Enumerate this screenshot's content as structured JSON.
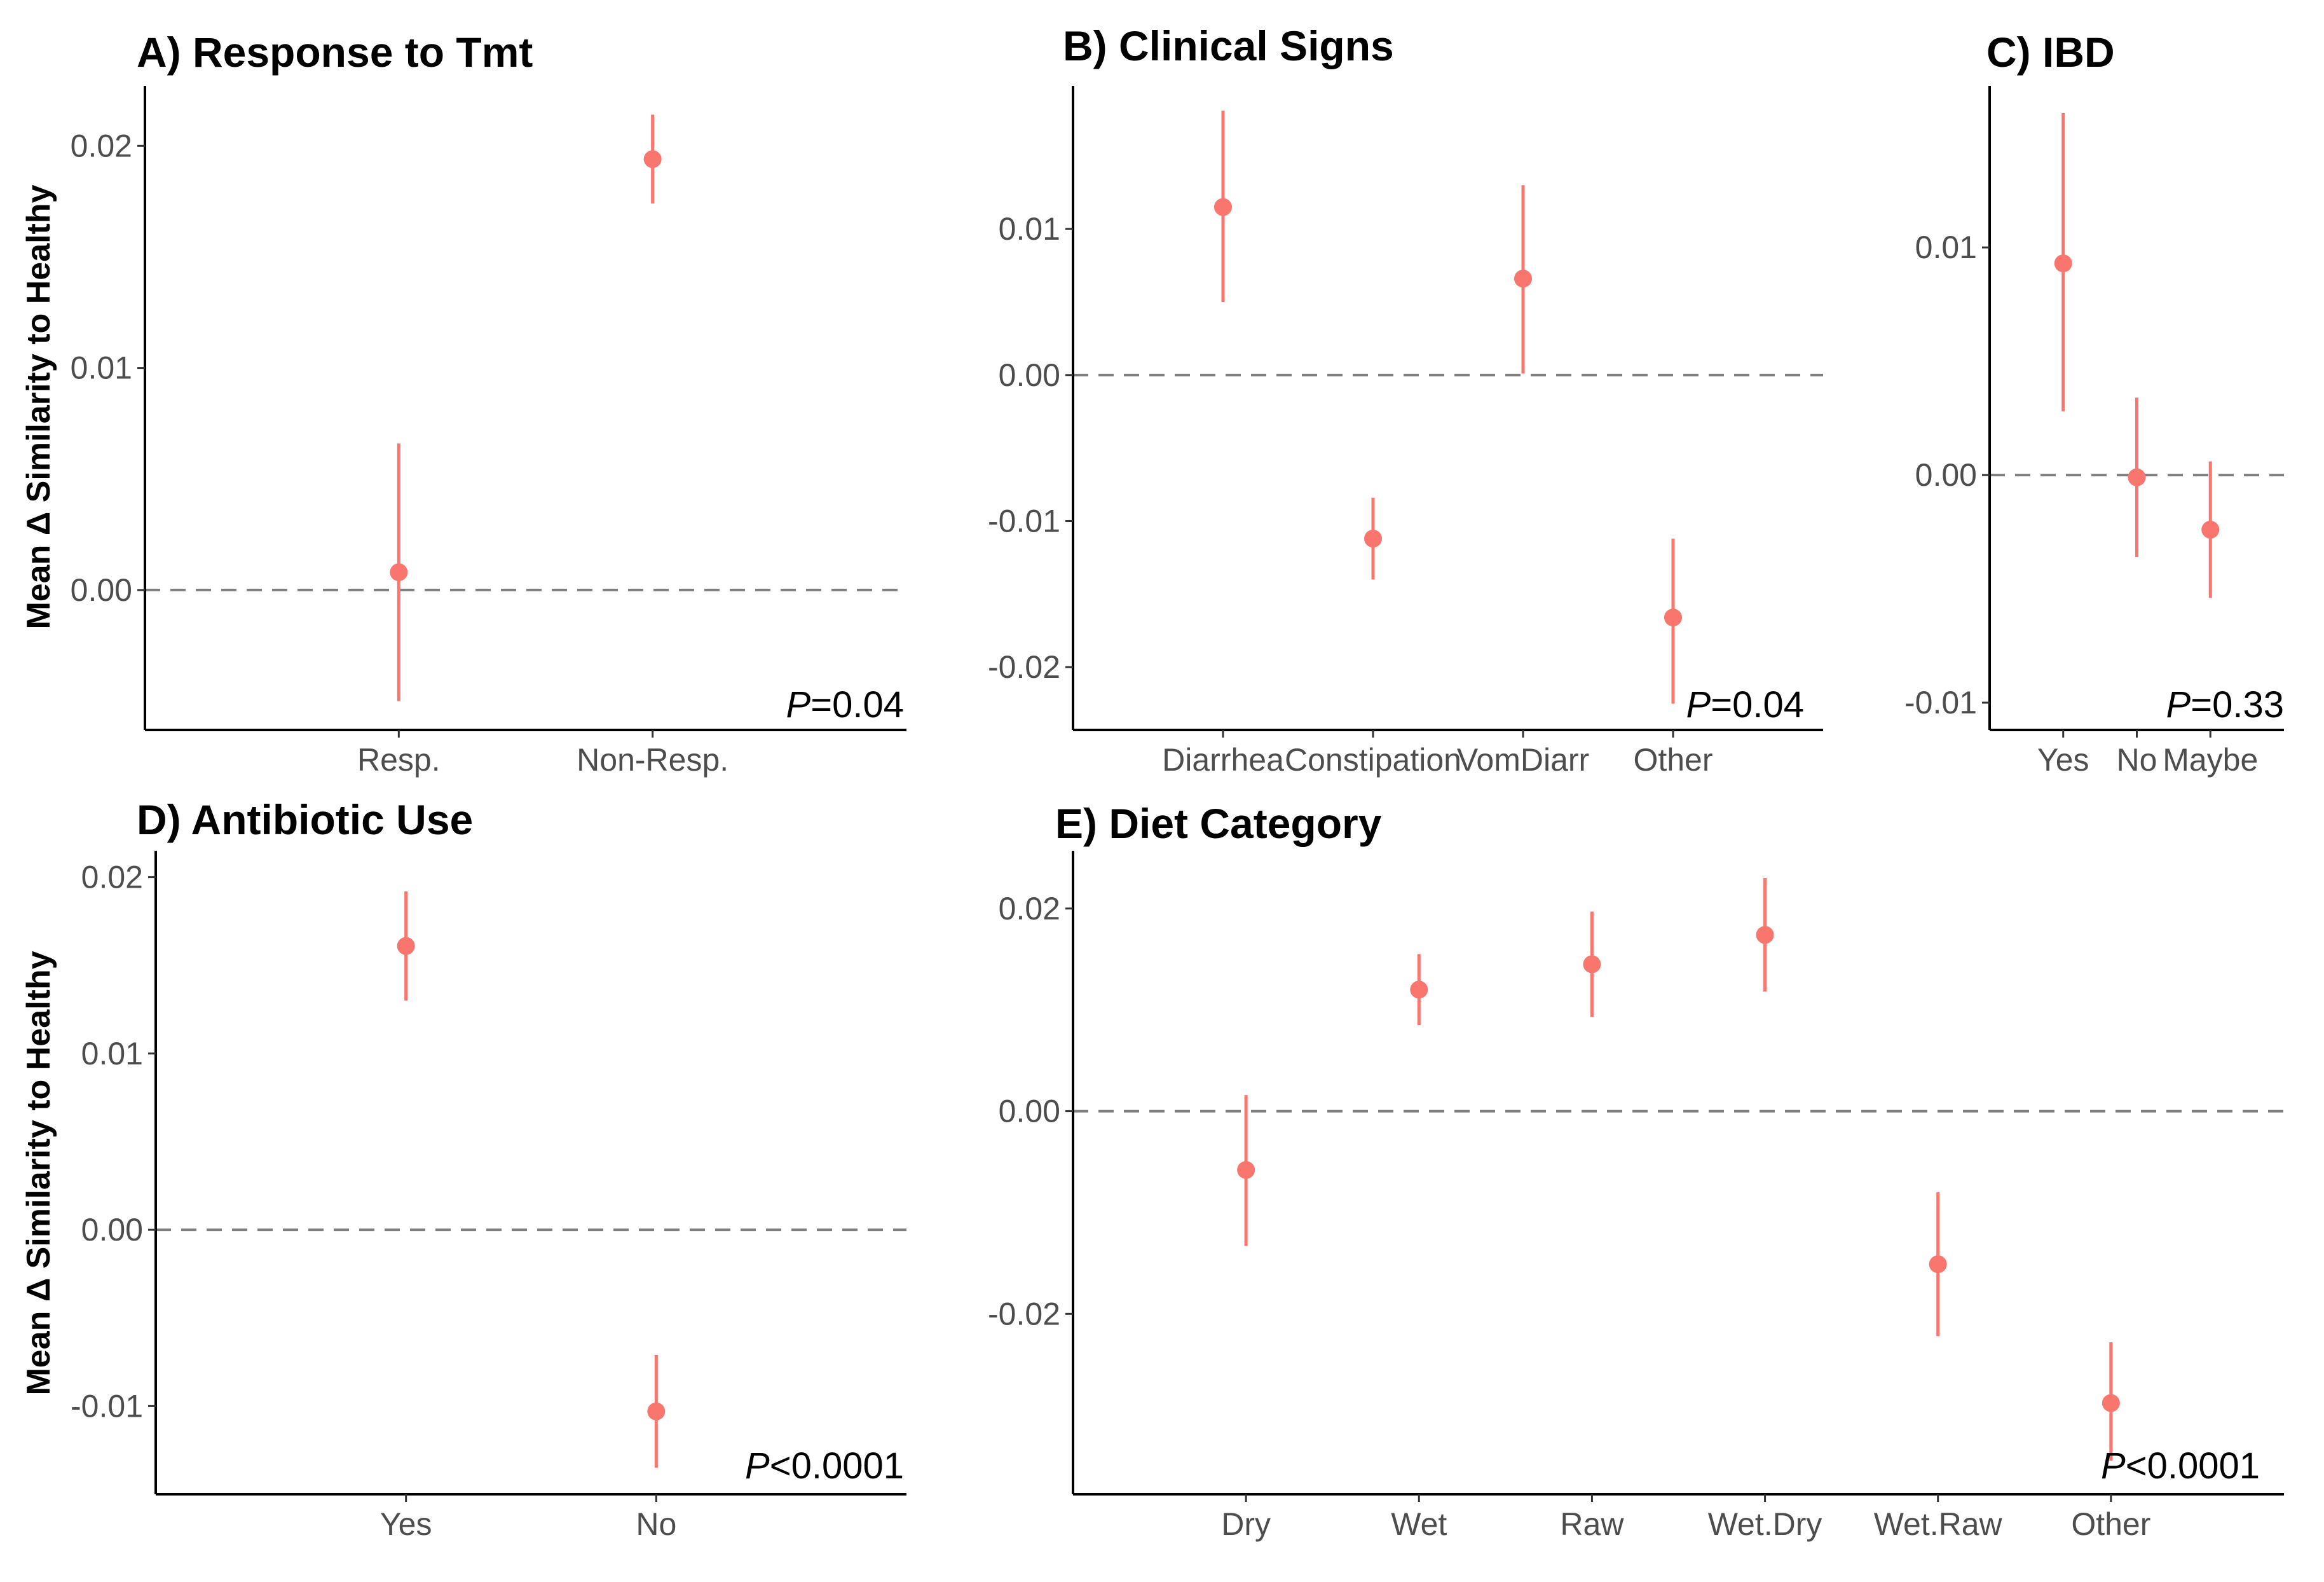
{
  "figure": {
    "accent_color": "#F8766D",
    "ref_line_color": "#7f7f7f",
    "y_axis_label": "Mean Δ Similarity to Healthy"
  },
  "chart_data": [
    {
      "id": "A",
      "type": "scatter",
      "title": "A) Response to Tmt",
      "ylabel": "Mean Δ Similarity to Healthy",
      "ylim": [
        -0.0063,
        0.0227
      ],
      "yticks": [
        0.0,
        0.01,
        0.02
      ],
      "ytick_labels": [
        "0.00",
        "0.01",
        "0.02"
      ],
      "reference_line_y": 0.0,
      "categories": [
        "Resp.",
        "Non-Resp."
      ],
      "values": [
        0.0008,
        0.0194
      ],
      "ci_low": [
        -0.005,
        0.0174
      ],
      "ci_high": [
        0.0066,
        0.0214
      ],
      "p_prefix": "P",
      "p_rest": "=0.04"
    },
    {
      "id": "B",
      "type": "scatter",
      "title": "B) Clinical Signs",
      "ylabel": "",
      "ylim": [
        -0.0243,
        0.0198
      ],
      "yticks": [
        -0.02,
        -0.01,
        0.0,
        0.01
      ],
      "ytick_labels": [
        "-0.02",
        "-0.01",
        "0.00",
        "0.01"
      ],
      "reference_line_y": 0.0,
      "categories": [
        "Diarrhea",
        "Constipation",
        "VomDiarr",
        "Other"
      ],
      "values": [
        0.0115,
        -0.0112,
        0.0066,
        -0.0166
      ],
      "ci_low": [
        0.005,
        -0.014,
        0.0001,
        -0.0225
      ],
      "ci_high": [
        0.0181,
        -0.0084,
        0.013,
        -0.0112
      ],
      "p_prefix": "P",
      "p_rest": "=0.04"
    },
    {
      "id": "C",
      "type": "scatter",
      "title": "C) IBD",
      "ylabel": "",
      "ylim": [
        -0.0112,
        0.0171
      ],
      "yticks": [
        -0.01,
        0.0,
        0.01
      ],
      "ytick_labels": [
        "-0.01",
        "0.00",
        "0.01"
      ],
      "reference_line_y": 0.0,
      "categories": [
        "Yes",
        "No",
        "Maybe"
      ],
      "values": [
        0.0093,
        -0.0001,
        -0.0024
      ],
      "ci_low": [
        0.0028,
        -0.0036,
        -0.0054
      ],
      "ci_high": [
        0.0159,
        0.0034,
        0.0006
      ],
      "p_prefix": "P",
      "p_rest": "=0.33"
    },
    {
      "id": "D",
      "type": "scatter",
      "title": "D) Antibiotic Use",
      "ylabel": "Mean Δ Similarity to Healthy",
      "ylim": [
        -0.015,
        0.0215
      ],
      "yticks": [
        -0.01,
        0.0,
        0.01,
        0.02
      ],
      "ytick_labels": [
        "-0.01",
        "0.00",
        "0.01",
        "0.02"
      ],
      "reference_line_y": 0.0,
      "categories": [
        "Yes",
        "No"
      ],
      "values": [
        0.0161,
        -0.0103
      ],
      "ci_low": [
        0.013,
        -0.0135
      ],
      "ci_high": [
        0.0192,
        -0.0071
      ],
      "p_prefix": "P",
      "p_rest": "<0.0001"
    },
    {
      "id": "E",
      "type": "scatter",
      "title": "E) Diet Category",
      "ylabel": "",
      "ylim": [
        -0.0378,
        0.0257
      ],
      "yticks": [
        -0.02,
        0.0,
        0.02
      ],
      "ytick_labels": [
        "-0.02",
        "0.00",
        "0.02"
      ],
      "reference_line_y": 0.0,
      "categories": [
        "Dry",
        "Wet",
        "Raw",
        "Wet.Dry",
        "Wet.Raw",
        "Other"
      ],
      "values": [
        -0.0058,
        0.012,
        0.0145,
        0.0174,
        -0.0151,
        -0.0288
      ],
      "ci_low": [
        -0.0133,
        0.0085,
        0.0093,
        0.0118,
        -0.0222,
        -0.0345
      ],
      "ci_high": [
        0.0016,
        0.0155,
        0.0197,
        0.023,
        -0.008,
        -0.0228
      ],
      "p_prefix": "P",
      "p_rest": "<0.0001"
    }
  ]
}
